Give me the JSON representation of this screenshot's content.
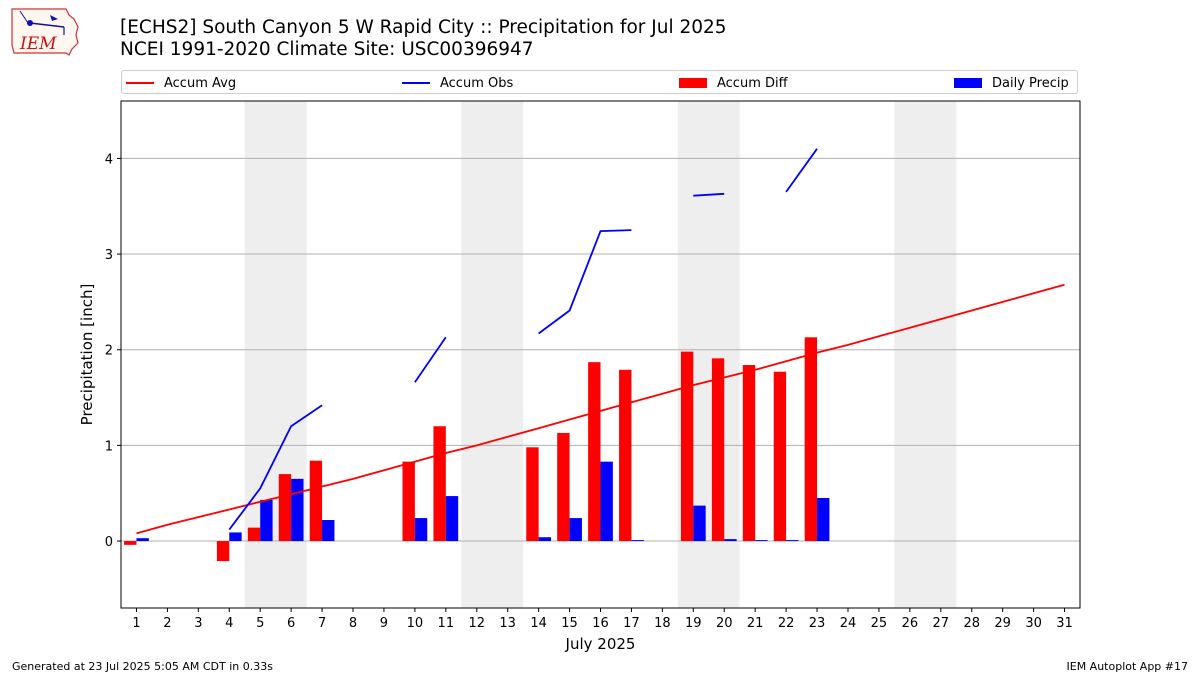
{
  "header": {
    "logo_text": "IEM",
    "title_line1": "[ECHS2] South Canyon 5 W Rapid City :: Precipitation for Jul 2025",
    "title_line2": "NCEI 1991-2020 Climate Site: USC00396947"
  },
  "footer": {
    "left": "Generated at 23 Jul 2025 5:05 AM CDT in 0.33s",
    "right": "IEM Autoplot App #17"
  },
  "colors": {
    "accum_avg": "#ff0000",
    "accum_obs": "#0000ff",
    "accum_diff": "#ff0000",
    "daily_precip": "#0000ff",
    "weekend_shade": "#eeeeee",
    "grid": "#b0b0b0"
  },
  "chart_data": {
    "type": "bar",
    "xlabel": "July 2025",
    "ylabel": "Precipitation [inch]",
    "xlim": [
      0.5,
      31.5
    ],
    "ylim": [
      -0.7,
      4.6
    ],
    "yticks": [
      0,
      1,
      2,
      3,
      4
    ],
    "grid": "y",
    "legend_position": "top",
    "categories": [
      1,
      2,
      3,
      4,
      5,
      6,
      7,
      8,
      9,
      10,
      11,
      12,
      13,
      14,
      15,
      16,
      17,
      18,
      19,
      20,
      21,
      22,
      23,
      24,
      25,
      26,
      27,
      28,
      29,
      30,
      31
    ],
    "weekend_shaded_days": [
      [
        5,
        6
      ],
      [
        12,
        13
      ],
      [
        19,
        20
      ],
      [
        26,
        27
      ]
    ],
    "series": [
      {
        "name": "Accum Avg",
        "kind": "line",
        "values": [
          0.08,
          0.17,
          0.25,
          0.33,
          0.41,
          0.49,
          0.57,
          0.65,
          0.74,
          0.83,
          0.92,
          1.0,
          1.09,
          1.18,
          1.27,
          1.36,
          1.45,
          1.54,
          1.63,
          1.71,
          1.79,
          1.88,
          1.97,
          2.05,
          2.14,
          2.23,
          2.32,
          2.41,
          2.5,
          2.59,
          2.68
        ]
      },
      {
        "name": "Accum Obs",
        "kind": "line",
        "values": [
          null,
          null,
          null,
          0.12,
          0.55,
          1.2,
          1.42,
          null,
          null,
          1.66,
          2.13,
          null,
          null,
          2.17,
          2.41,
          3.24,
          3.25,
          null,
          3.61,
          3.63,
          null,
          3.65,
          4.1,
          null,
          null,
          null,
          null,
          null,
          null,
          null,
          null
        ]
      },
      {
        "name": "Accum Diff",
        "kind": "bar",
        "values": [
          -0.04,
          null,
          null,
          -0.21,
          0.14,
          0.7,
          0.84,
          null,
          null,
          0.83,
          1.2,
          null,
          null,
          0.98,
          1.13,
          1.87,
          1.79,
          null,
          1.98,
          1.91,
          1.84,
          1.77,
          2.13,
          null,
          null,
          null,
          null,
          null,
          null,
          null,
          null
        ]
      },
      {
        "name": "Daily Precip",
        "kind": "bar",
        "values": [
          0.03,
          null,
          null,
          0.09,
          0.43,
          0.65,
          0.22,
          null,
          null,
          0.24,
          0.47,
          null,
          null,
          0.04,
          0.24,
          0.83,
          0.01,
          null,
          0.37,
          0.02,
          0.01,
          0.01,
          0.45,
          null,
          null,
          null,
          null,
          null,
          null,
          null,
          null
        ]
      }
    ]
  }
}
